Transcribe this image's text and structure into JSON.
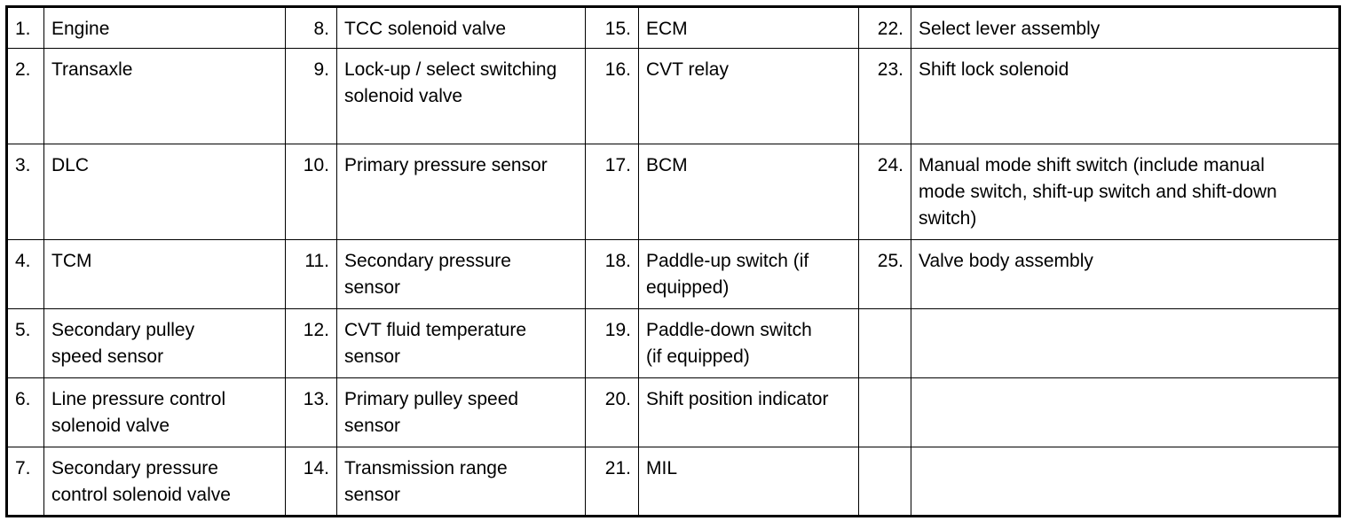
{
  "rows": [
    [
      {
        "n": "1.",
        "t": "Engine"
      },
      {
        "n": "8.",
        "t": "TCC solenoid valve"
      },
      {
        "n": "15.",
        "t": "ECM"
      },
      {
        "n": "22.",
        "t": "Select lever assembly"
      }
    ],
    [
      {
        "n": "2.",
        "t": "Transaxle"
      },
      {
        "n": "9.",
        "t": "Lock-up / select switching solenoid valve"
      },
      {
        "n": "16.",
        "t": "CVT relay"
      },
      {
        "n": "23.",
        "t": "Shift lock solenoid"
      }
    ],
    [
      {
        "n": "3.",
        "t": "DLC"
      },
      {
        "n": "10.",
        "t": "Primary pressure sensor"
      },
      {
        "n": "17.",
        "t": "BCM"
      },
      {
        "n": "24.",
        "t": "Manual mode shift switch (include manual mode switch, shift-up switch and shift-down switch)"
      }
    ],
    [
      {
        "n": "4.",
        "t": "TCM"
      },
      {
        "n": "11.",
        "t": "Secondary pressure sensor"
      },
      {
        "n": "18.",
        "t": "Paddle-up switch (if equipped)"
      },
      {
        "n": "25.",
        "t": "Valve body assembly"
      }
    ],
    [
      {
        "n": "5.",
        "t": "Secondary pulley speed sensor"
      },
      {
        "n": "12.",
        "t": "CVT fluid temperature sensor"
      },
      {
        "n": "19.",
        "t": "Paddle-down switch (if equipped)"
      },
      {
        "n": "",
        "t": ""
      }
    ],
    [
      {
        "n": "6.",
        "t": "Line pressure control solenoid valve"
      },
      {
        "n": "13.",
        "t": "Primary pulley speed sensor"
      },
      {
        "n": "20.",
        "t": "Shift position indicator"
      },
      {
        "n": "",
        "t": ""
      }
    ],
    [
      {
        "n": "7.",
        "t": "Secondary pressure control solenoid valve"
      },
      {
        "n": "14.",
        "t": "Transmission range sensor"
      },
      {
        "n": "21.",
        "t": "MIL"
      },
      {
        "n": "",
        "t": ""
      }
    ]
  ]
}
